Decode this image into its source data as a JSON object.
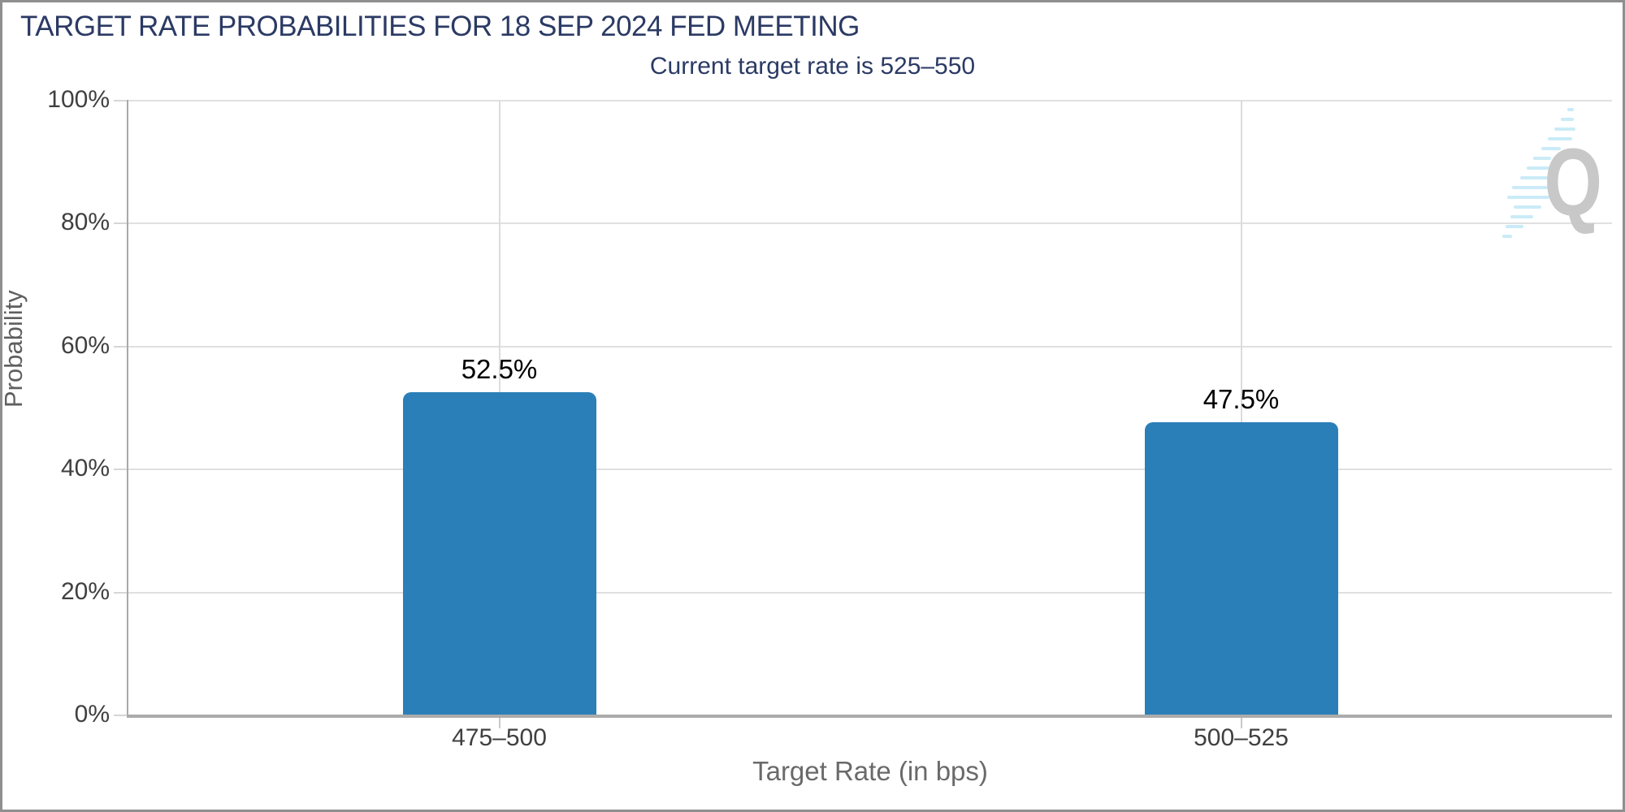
{
  "header": {
    "title": "TARGET RATE PROBABILITIES FOR 18 SEP 2024 FED MEETING",
    "subtitle": "Current target rate is 525–550"
  },
  "watermark": {
    "letter": "Q",
    "name": "quikstrike-logo"
  },
  "colors": {
    "title_navy": "#2b3a64",
    "bar_blue": "#2a7fb8",
    "grid_gray": "#e0e0e0",
    "axis_gray": "#ababab",
    "watermark_gray": "#c6c6c6",
    "watermark_blue": "#c8eaf7"
  },
  "chart_data": {
    "type": "bar",
    "title": "TARGET RATE PROBABILITIES FOR 18 SEP 2024 FED MEETING",
    "subtitle": "Current target rate is 525–550",
    "categories": [
      "475–500",
      "500–525"
    ],
    "values": [
      52.5,
      47.5
    ],
    "value_labels": [
      "52.5%",
      "47.5%"
    ],
    "xlabel": "Target Rate (in bps)",
    "ylabel": "Probability",
    "ylim": [
      0,
      100
    ],
    "yticks": [
      "0%",
      "20%",
      "40%",
      "60%",
      "80%",
      "100%"
    ],
    "grid": true,
    "legend": "none",
    "bar_color": "#2a7fb8"
  }
}
